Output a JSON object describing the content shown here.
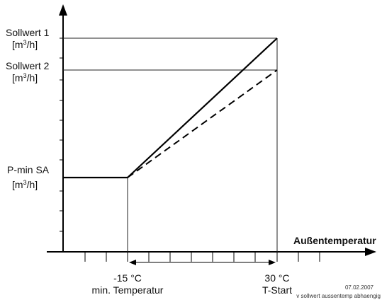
{
  "y_labels": {
    "sollwert1": {
      "name": "Sollwert 1",
      "unit_pre": "[m",
      "unit_sup": "3",
      "unit_post": "/h]"
    },
    "sollwert2": {
      "name": "Sollwert 2",
      "unit_pre": "[m",
      "unit_sup": "3",
      "unit_post": "/h]"
    },
    "pmin": {
      "name": "P-min SA",
      "unit_pre": "[m",
      "unit_sup": "3",
      "unit_post": "/h]"
    }
  },
  "x_axis_title": "Außentemperatur",
  "x_labels": {
    "left": {
      "value": "-15 °C",
      "caption": "min. Temperatur"
    },
    "right": {
      "value": "30 °C",
      "caption": "T-Start"
    }
  },
  "footer": {
    "date": "07.02.2007",
    "file": "v  sollwert  aussentemp  abhaengig"
  },
  "colors": {
    "line": "#000000",
    "thin_line": "#222222"
  }
}
